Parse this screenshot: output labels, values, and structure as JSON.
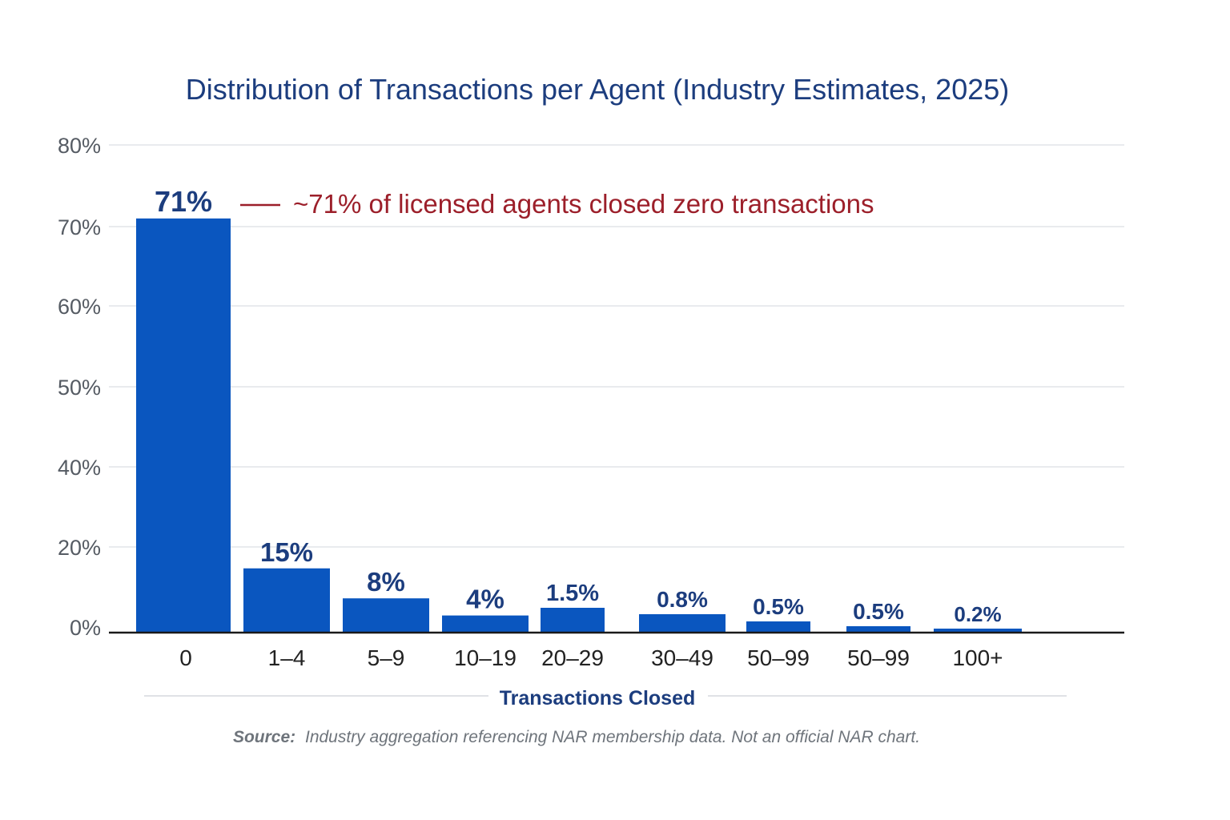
{
  "chart_data": {
    "type": "bar",
    "title": "Distribution of Transactions per Agent (Industry Estimates, 2025)",
    "xlabel": "Transactions Closed",
    "ylabel": "",
    "y_ticks": [
      "80%",
      "70%",
      "60%",
      "50%",
      "40%",
      "20%",
      "0%"
    ],
    "categories": [
      "0",
      "1–4",
      "5–9",
      "10–19",
      "20–29",
      "30–49",
      "50–99",
      "50–99",
      "100+"
    ],
    "values": [
      71,
      15,
      8,
      4,
      1.5,
      0.8,
      0.5,
      0.5,
      0.2
    ],
    "data_labels": [
      "71%",
      "15%",
      "8%",
      "4%",
      "1.5%",
      "0.8%",
      "0.5%",
      "0.5%",
      "0.2%"
    ],
    "annotation": "~71% of licensed agents closed zero transactions",
    "grid": true,
    "legend": "none",
    "bar_color": "#0a56bf",
    "annotation_color": "#9c1f2a",
    "title_color": "#1c3d7e"
  },
  "source": {
    "prefix": "Source:",
    "text": "Industry aggregation referencing NAR membership data. Not an official NAR chart."
  }
}
